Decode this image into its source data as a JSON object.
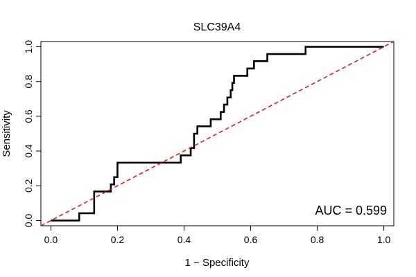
{
  "chart_data": {
    "type": "line",
    "title": "SLC39A4",
    "xlabel": "1 − Specificity",
    "ylabel": "Sensitivity",
    "xlim": [
      -0.03,
      1.03
    ],
    "ylim": [
      -0.03,
      1.03
    ],
    "x_ticks": [
      0.0,
      0.2,
      0.4,
      0.6,
      0.8,
      1.0
    ],
    "x_tick_labels": [
      "0.0",
      "0.2",
      "0.4",
      "0.6",
      "0.8",
      "1.0"
    ],
    "y_ticks": [
      0.0,
      0.2,
      0.4,
      0.6,
      0.8,
      1.0
    ],
    "y_tick_labels": [
      "0.0",
      "0.2",
      "0.4",
      "0.6",
      "0.8",
      "1.0"
    ],
    "grid": false,
    "series": [
      {
        "name": "ROC curve",
        "color": "#000000",
        "style": "solid",
        "x": [
          0.0,
          0.085,
          0.085,
          0.13,
          0.13,
          0.18,
          0.18,
          0.19,
          0.19,
          0.2,
          0.2,
          0.39,
          0.39,
          0.42,
          0.42,
          0.43,
          0.43,
          0.44,
          0.44,
          0.48,
          0.48,
          0.51,
          0.51,
          0.52,
          0.52,
          0.53,
          0.53,
          0.54,
          0.54,
          0.545,
          0.545,
          0.55,
          0.55,
          0.59,
          0.59,
          0.61,
          0.61,
          0.65,
          0.65,
          0.765,
          0.765,
          1.0
        ],
        "y": [
          0.0,
          0.0,
          0.042,
          0.042,
          0.167,
          0.167,
          0.208,
          0.208,
          0.25,
          0.25,
          0.333,
          0.333,
          0.375,
          0.375,
          0.417,
          0.417,
          0.5,
          0.5,
          0.542,
          0.542,
          0.583,
          0.583,
          0.625,
          0.625,
          0.667,
          0.667,
          0.708,
          0.708,
          0.75,
          0.75,
          0.792,
          0.792,
          0.833,
          0.833,
          0.875,
          0.875,
          0.917,
          0.917,
          0.958,
          0.958,
          1.0,
          1.0
        ]
      },
      {
        "name": "Reference line",
        "color": "#e41a1c",
        "style": "dashed",
        "x": [
          -0.03,
          1.03
        ],
        "y": [
          -0.03,
          1.03
        ]
      }
    ],
    "annotations": [
      {
        "text": "AUC = 0.599",
        "position": "bottom-right"
      }
    ]
  }
}
